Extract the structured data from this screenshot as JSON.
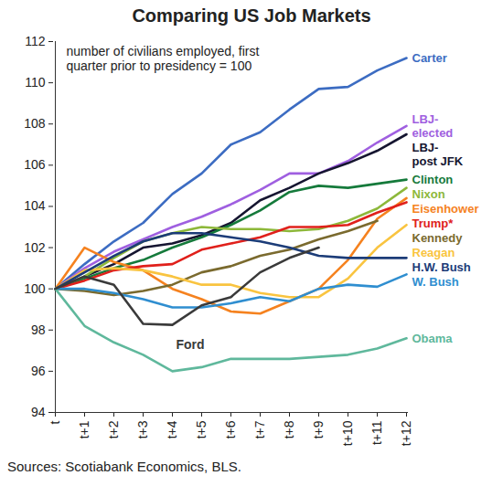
{
  "chart_data": {
    "type": "line",
    "title": "Comparing US Job Markets",
    "subtitle": "number of civilians employed, first quarter prior to presidency = 100",
    "caption": "Sources: Scotiabank Economics, BLS.",
    "categories": [
      "t",
      "t+1",
      "t+2",
      "t+3",
      "t+4",
      "t+5",
      "t+6",
      "t+7",
      "t+8",
      "t+9",
      "t+10",
      "t+11",
      "t+12"
    ],
    "series": [
      {
        "name": "Carter",
        "color": "#3c6cc2",
        "values": [
          100,
          101.2,
          102.3,
          103.2,
          104.6,
          105.6,
          107.0,
          107.6,
          108.7,
          109.7,
          109.8,
          110.6,
          111.2
        ]
      },
      {
        "name": "LBJ-elected",
        "color": "#9f5fe0",
        "values": [
          100,
          101.0,
          101.8,
          102.4,
          103.0,
          103.5,
          104.1,
          104.8,
          105.6,
          105.6,
          106.2,
          107.1,
          107.9
        ]
      },
      {
        "name": "LBJ-post JFK",
        "color": "#151530",
        "values": [
          100,
          100.6,
          101.2,
          102.0,
          102.2,
          102.6,
          103.2,
          104.3,
          104.9,
          105.6,
          106.1,
          106.7,
          107.5
        ]
      },
      {
        "name": "Clinton",
        "color": "#157a3b",
        "values": [
          100,
          100.5,
          101.0,
          101.4,
          102.0,
          102.5,
          103.1,
          103.8,
          104.7,
          105.0,
          104.9,
          105.1,
          105.3
        ]
      },
      {
        "name": "Nixon",
        "color": "#8db83a",
        "values": [
          100,
          100.6,
          101.5,
          102.3,
          102.7,
          103.0,
          102.9,
          102.9,
          102.8,
          102.9,
          103.3,
          103.9,
          104.9
        ]
      },
      {
        "name": "Eisenhower",
        "color": "#f5821f",
        "values": [
          100,
          102.0,
          101.3,
          100.9,
          100.0,
          99.5,
          98.9,
          98.8,
          99.4,
          100.0,
          101.4,
          103.4,
          104.4
        ]
      },
      {
        "name": "Trump*",
        "color": "#e0201b",
        "values": [
          100,
          100.4,
          100.9,
          101.1,
          101.2,
          101.9,
          102.2,
          102.5,
          103.0,
          103.0,
          103.1,
          103.7,
          104.2
        ]
      },
      {
        "name": "Kennedy",
        "color": "#7a6a2e",
        "values": [
          100,
          99.9,
          99.7,
          99.9,
          100.2,
          100.8,
          101.1,
          101.6,
          101.9,
          102.4,
          102.8,
          103.3,
          null
        ]
      },
      {
        "name": "Reagan",
        "color": "#f9c440",
        "values": [
          100,
          100.9,
          101.0,
          100.9,
          100.6,
          100.2,
          100.2,
          99.8,
          99.6,
          99.6,
          100.5,
          102.0,
          103.1
        ]
      },
      {
        "name": "H.W. Bush",
        "color": "#1c3c78",
        "values": [
          100,
          100.8,
          101.6,
          102.3,
          102.7,
          102.7,
          102.5,
          102.3,
          102.0,
          101.6,
          101.5,
          101.5,
          101.5
        ]
      },
      {
        "name": "W. Bush",
        "color": "#2f8ed0",
        "values": [
          100,
          100.0,
          99.8,
          99.5,
          99.1,
          99.1,
          99.3,
          99.6,
          99.4,
          100.0,
          100.2,
          100.1,
          100.7
        ]
      },
      {
        "name": "Obama",
        "color": "#5fb89c",
        "values": [
          100,
          98.2,
          97.4,
          96.8,
          96.0,
          96.2,
          96.6,
          96.6,
          96.6,
          96.7,
          96.8,
          97.1,
          97.6
        ]
      },
      {
        "name": "Ford",
        "color": "#3a3a3a",
        "values": [
          100,
          100.6,
          100.2,
          98.3,
          98.25,
          99.2,
          99.6,
          100.8,
          101.5,
          102.0,
          null,
          null,
          null
        ]
      }
    ],
    "ylim": [
      94,
      112
    ],
    "yticks": [
      94,
      96,
      98,
      100,
      102,
      104,
      106,
      108,
      110,
      112
    ]
  }
}
